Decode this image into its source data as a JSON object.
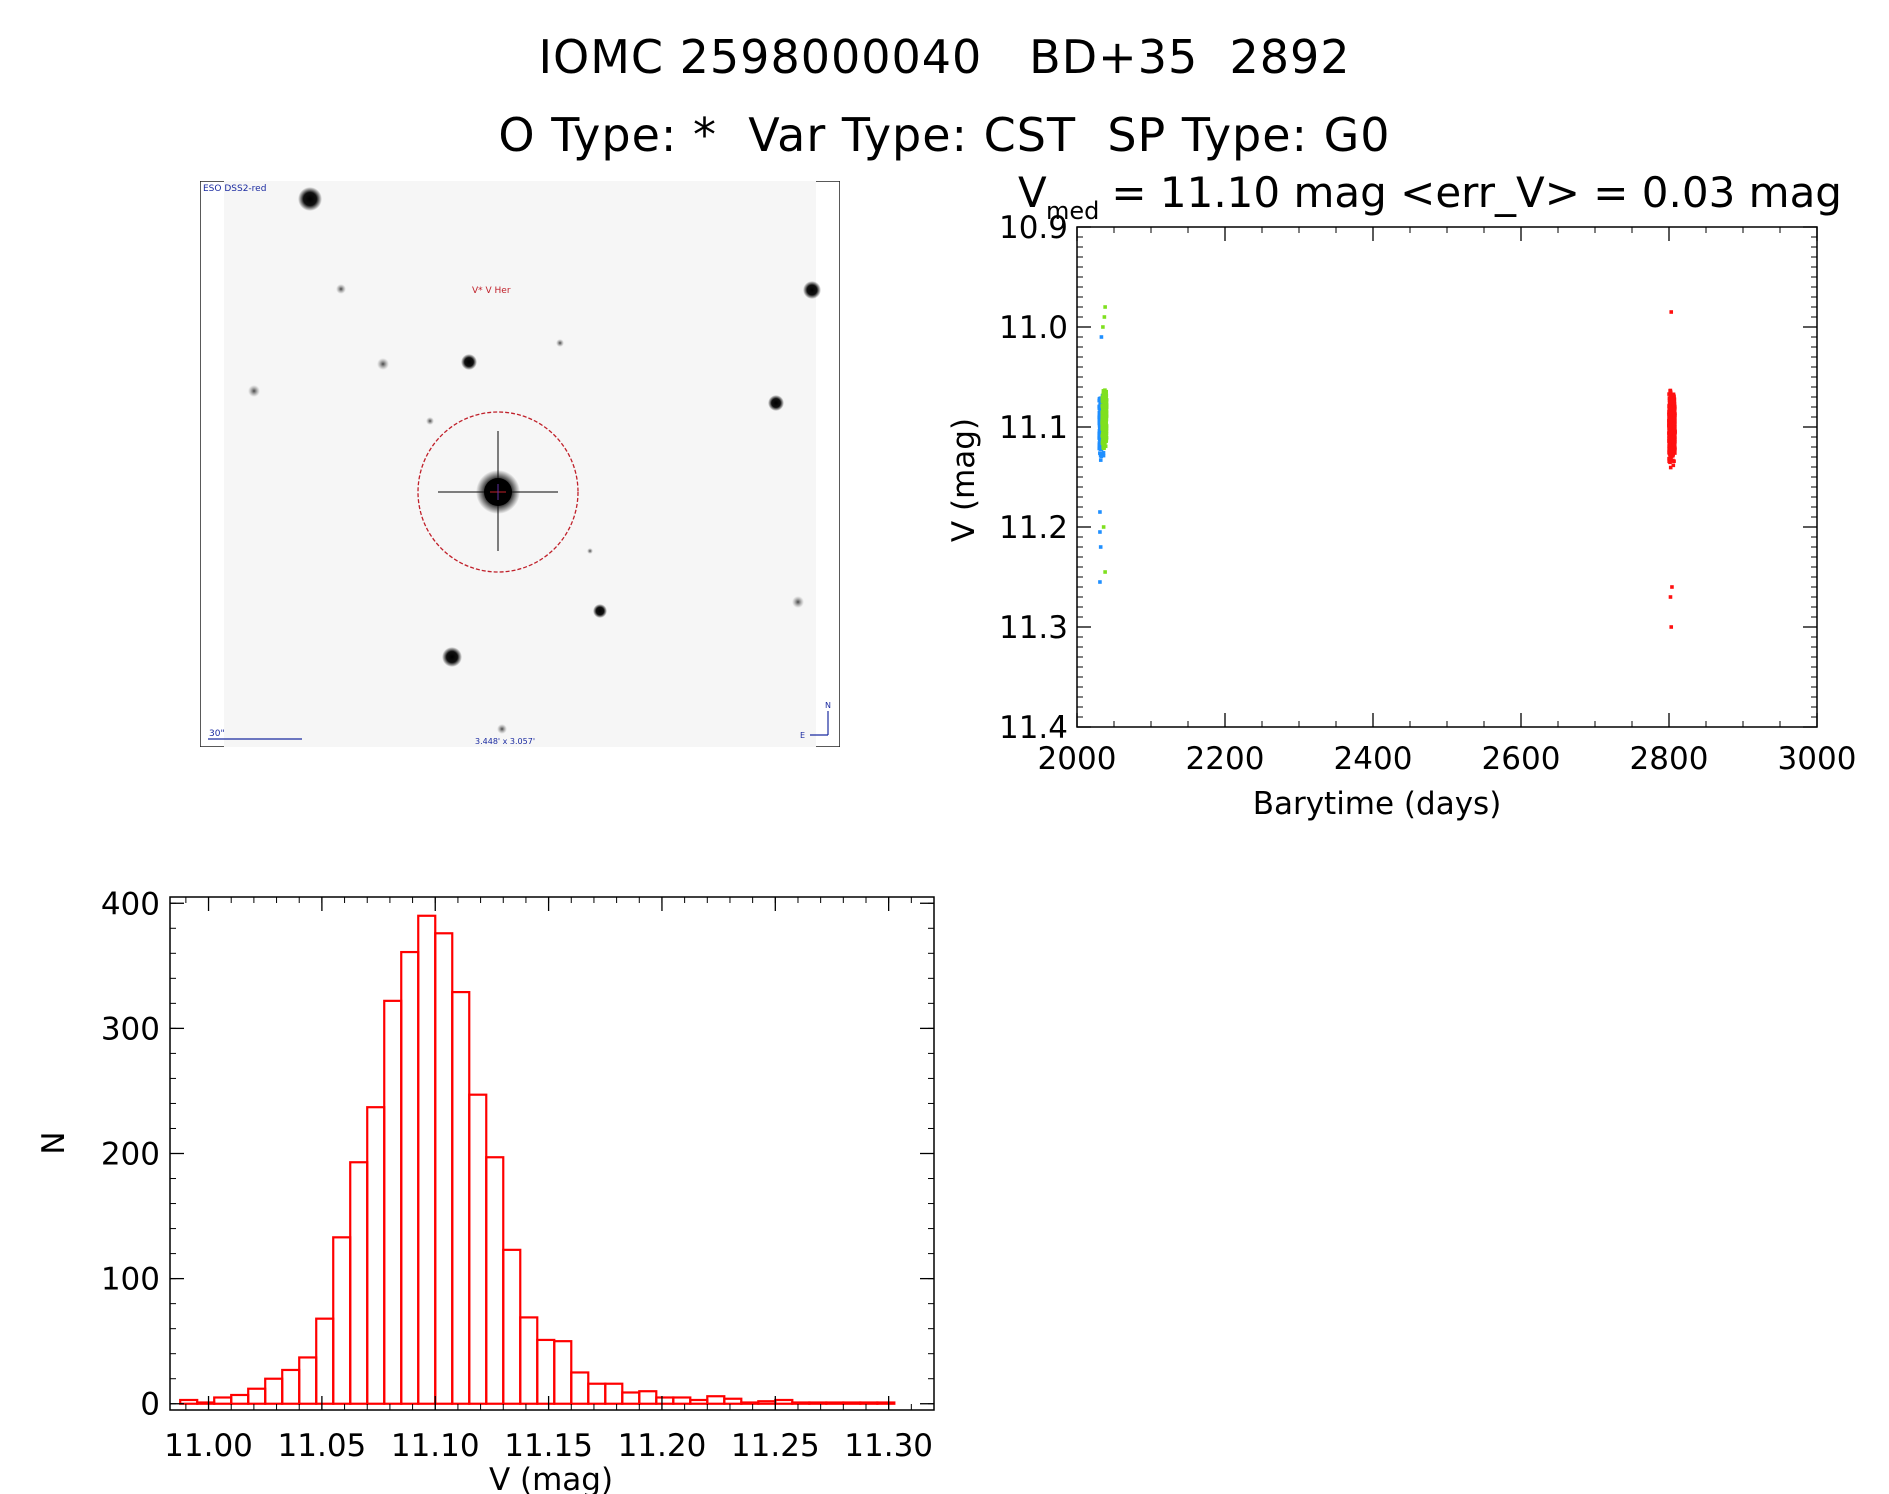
{
  "header": {
    "title_line1": "IOMC 2598000040   BD+35  2892",
    "title_line2": "O Type: *  Var Type: CST  SP Type: G0"
  },
  "sky_image": {
    "survey_label": "ESO DSS2-red",
    "target_label": "V* V Her",
    "scale_label": "30\"",
    "fov_label": "3.448' x 3.057'",
    "north_label": "N",
    "east_label": "E",
    "background_color": "#f6f6f6",
    "circle_color": "#c0202a",
    "annotation_color": "#1a2aa0"
  },
  "chart_data": [
    {
      "type": "scatter",
      "title_prefix": "V",
      "title_subscript": "med",
      "title_suffix": " = 11.10 mag <err_V> = 0.03 mag",
      "xlabel": "Barytime (days)",
      "ylabel": "V (mag)",
      "xlim": [
        2000,
        3000
      ],
      "ylim": [
        11.4,
        10.9
      ],
      "y_inverted": true,
      "xticks": [
        "2000",
        "2200",
        "2400",
        "2600",
        "2800",
        "3000"
      ],
      "yticks": [
        "10.9",
        "11.0",
        "11.1",
        "11.2",
        "11.3",
        "11.4"
      ],
      "series": [
        {
          "color": "#1f8fff",
          "x_range": [
            2030,
            2036
          ],
          "y_center": 11.1,
          "y_spread": 0.045,
          "n": 340,
          "outliers": [
            [
              2031,
              11.255
            ],
            [
              2032,
              11.22
            ],
            [
              2031,
              11.205
            ],
            [
              2033,
              11.01
            ],
            [
              2031,
              11.185
            ]
          ]
        },
        {
          "color": "#7fe01f",
          "x_range": [
            2034,
            2040
          ],
          "y_center": 11.09,
          "y_spread": 0.045,
          "n": 320,
          "outliers": [
            [
              2038,
              10.98
            ],
            [
              2037,
              10.99
            ],
            [
              2038,
              11.245
            ],
            [
              2036,
              11.2
            ],
            [
              2035,
              11.0
            ]
          ]
        },
        {
          "color": "#ff1010",
          "x_range": [
            2800,
            2808
          ],
          "y_center": 11.1,
          "y_spread": 0.05,
          "n": 900,
          "outliers": [
            [
              2803,
              11.3
            ],
            [
              2803,
              10.985
            ],
            [
              2802,
              11.27
            ],
            [
              2804,
              11.26
            ]
          ]
        }
      ]
    },
    {
      "type": "bar",
      "histogram": true,
      "xlabel": "V (mag)",
      "ylabel": "N",
      "xlim": [
        10.983,
        11.32
      ],
      "ylim": [
        -5,
        405
      ],
      "xticks": [
        "11.00",
        "11.05",
        "11.10",
        "11.15",
        "11.20",
        "11.25",
        "11.30"
      ],
      "yticks": [
        "0",
        "100",
        "200",
        "300",
        "400"
      ],
      "bar_color": "#ff0000",
      "bin_start": 10.9875,
      "bin_width": 0.0075,
      "values": [
        3,
        1,
        5,
        7,
        12,
        20,
        27,
        37,
        68,
        133,
        193,
        237,
        322,
        361,
        390,
        376,
        329,
        247,
        197,
        123,
        69,
        51,
        50,
        25,
        16,
        16,
        9,
        10,
        5,
        5,
        3,
        6,
        4,
        1,
        2,
        3,
        1,
        1,
        1,
        1,
        1,
        1,
        0,
        0
      ]
    }
  ]
}
